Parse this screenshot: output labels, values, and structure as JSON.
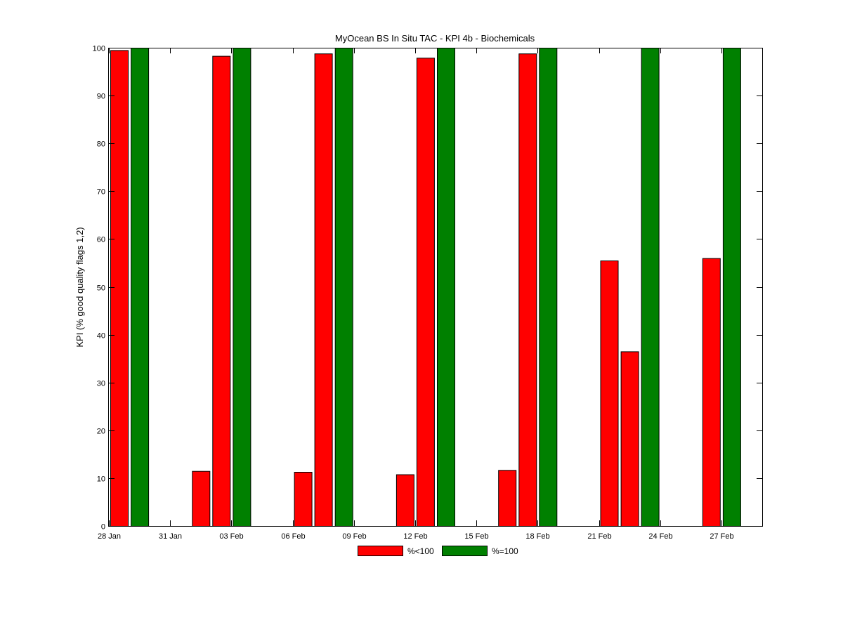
{
  "chart_data": {
    "type": "bar",
    "title": "MyOcean  BS In Situ TAC - KPI 4b - Biochemicals",
    "xlabel": "",
    "ylabel": "KPI (% good quality flags 1,2)",
    "ylim": [
      0,
      100
    ],
    "yticks": [
      0,
      10,
      20,
      30,
      40,
      50,
      60,
      70,
      80,
      90,
      100
    ],
    "xlim": [
      "2013-01-28",
      "2013-03-01"
    ],
    "xticks": [
      {
        "date": "2013-01-28",
        "label": "28 Jan"
      },
      {
        "date": "2013-01-31",
        "label": "31 Jan"
      },
      {
        "date": "2013-02-03",
        "label": "03 Feb"
      },
      {
        "date": "2013-02-06",
        "label": "06 Feb"
      },
      {
        "date": "2013-02-09",
        "label": "09 Feb"
      },
      {
        "date": "2013-02-12",
        "label": "12 Feb"
      },
      {
        "date": "2013-02-15",
        "label": "15 Feb"
      },
      {
        "date": "2013-02-18",
        "label": "18 Feb"
      },
      {
        "date": "2013-02-21",
        "label": "21 Feb"
      },
      {
        "date": "2013-02-24",
        "label": "24 Feb"
      },
      {
        "date": "2013-02-27",
        "label": "27 Feb"
      }
    ],
    "grid": false,
    "legend_position": "bottom-center",
    "series": [
      {
        "name": "%<100",
        "color": "#ff0000",
        "points": [
          {
            "x": "2013-01-28",
            "y": 99.5
          },
          {
            "x": "2013-02-01",
            "y": 11.5
          },
          {
            "x": "2013-02-02",
            "y": 98.3
          },
          {
            "x": "2013-02-06",
            "y": 11.3
          },
          {
            "x": "2013-02-07",
            "y": 98.8
          },
          {
            "x": "2013-02-11",
            "y": 10.8
          },
          {
            "x": "2013-02-12",
            "y": 97.9
          },
          {
            "x": "2013-02-16",
            "y": 11.7
          },
          {
            "x": "2013-02-17",
            "y": 98.8
          },
          {
            "x": "2013-02-21",
            "y": 55.5
          },
          {
            "x": "2013-02-22",
            "y": 36.5
          },
          {
            "x": "2013-02-26",
            "y": 56.0
          }
        ]
      },
      {
        "name": "%=100",
        "color": "#008000",
        "points": [
          {
            "x": "2013-01-29",
            "y": 100
          },
          {
            "x": "2013-02-03",
            "y": 100
          },
          {
            "x": "2013-02-08",
            "y": 100
          },
          {
            "x": "2013-02-13",
            "y": 100
          },
          {
            "x": "2013-02-18",
            "y": 100
          },
          {
            "x": "2013-02-23",
            "y": 100
          },
          {
            "x": "2013-02-27",
            "y": 100
          }
        ]
      }
    ]
  }
}
